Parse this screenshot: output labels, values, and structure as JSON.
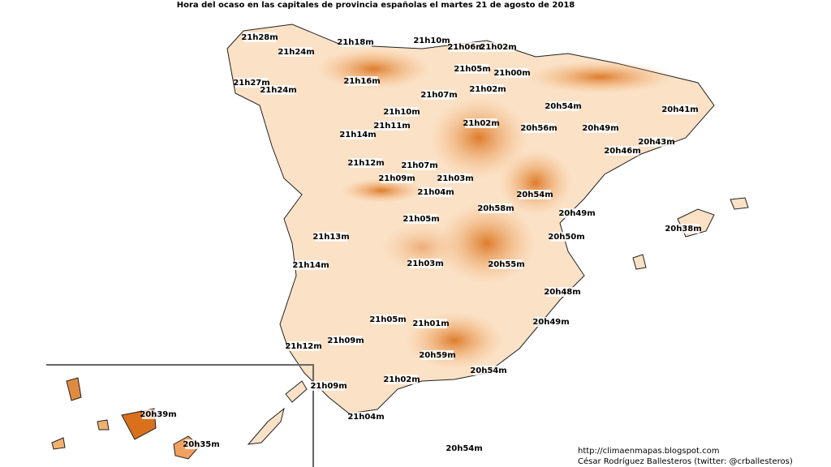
{
  "title": "Hora del ocaso en las capitales de provincia españolas el martes 21 de agosto de 2018",
  "labels": [
    "21h28m",
    "21h24m",
    "21h18m",
    "21h10m",
    "21h06m",
    "21h02m",
    "21h05m",
    "21h00m",
    "21h27m",
    "21h24m",
    "21h16m",
    "21h07m",
    "21h02m",
    "20h54m",
    "20h41m",
    "21h10m",
    "21h11m",
    "21h02m",
    "20h56m",
    "20h49m",
    "21h14m",
    "20h43m",
    "20h46m",
    "21h12m",
    "21h07m",
    "21h09m",
    "21h03m",
    "21h04m",
    "20h54m",
    "20h58m",
    "20h49m",
    "21h05m",
    "20h38m",
    "21h13m",
    "20h50m",
    "21h14m",
    "21h03m",
    "20h55m",
    "20h48m",
    "21h05m",
    "21h01m",
    "20h49m",
    "21h09m",
    "21h12m",
    "20h59m",
    "20h54m",
    "21h02m",
    "21h09m",
    "21h04m",
    "20h39m",
    "20h35m",
    "20h54m"
  ],
  "credits": [
    "http://climaenmapas.blogspot.com",
    "César Rodríguez Ballesteros (twitter: @crballesteros)"
  ]
}
